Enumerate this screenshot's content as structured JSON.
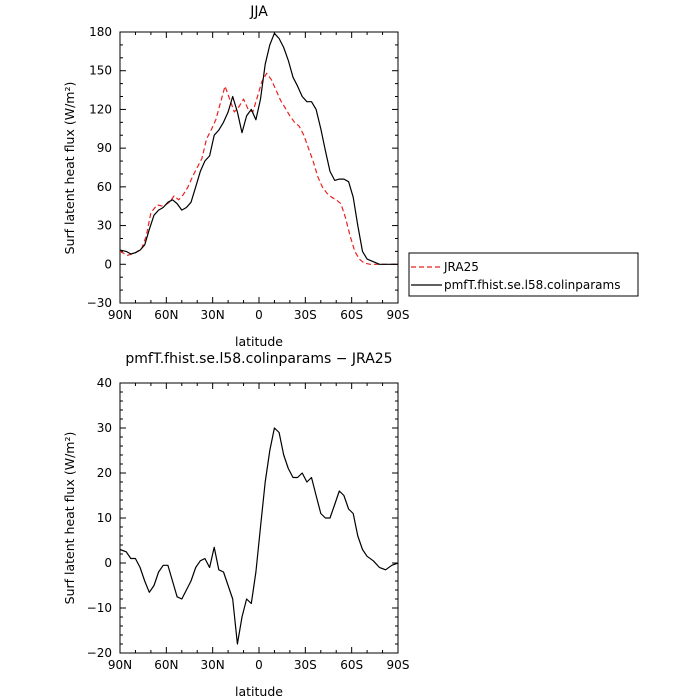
{
  "colors": {
    "jra": "#e8221f",
    "model": "#000000"
  },
  "chart_data": [
    {
      "type": "line",
      "title": "JJA",
      "xlabel": "latitude",
      "ylabel": "Surf latent heat flux (W/m²)",
      "xlim": [
        -90,
        90
      ],
      "ylim": [
        -30,
        180
      ],
      "xticks": [
        -90,
        -60,
        -30,
        0,
        30,
        60,
        90
      ],
      "xticklabels": [
        "90N",
        "60N",
        "30N",
        "0",
        "30S",
        "60S",
        "90S"
      ],
      "yticks": [
        -30,
        0,
        30,
        60,
        90,
        120,
        150,
        180
      ],
      "yticklabels": [
        "−30",
        "0",
        "30",
        "60",
        "90",
        "120",
        "150",
        "180"
      ],
      "legend_position": "right",
      "series": [
        {
          "name": "JRA25",
          "style": "dashed",
          "color": "#e8221f",
          "x": [
            -90,
            -85,
            -80,
            -76,
            -73,
            -70,
            -66,
            -62,
            -58,
            -55,
            -52,
            -49,
            -46,
            -43,
            -40,
            -37,
            -34,
            -31,
            -28,
            -25,
            -22,
            -19,
            -16,
            -13,
            -10,
            -7,
            -4,
            -1,
            2,
            5,
            8,
            11,
            14,
            17,
            20,
            23,
            26,
            29,
            32,
            35,
            38,
            41,
            44,
            47,
            50,
            53,
            56,
            59,
            62,
            65,
            68,
            72,
            76,
            80,
            84,
            87,
            90
          ],
          "y": [
            10,
            7,
            9,
            12,
            22,
            40,
            46,
            45,
            48,
            53,
            50,
            54,
            60,
            68,
            75,
            82,
            97,
            104,
            112,
            125,
            138,
            128,
            118,
            122,
            128,
            120,
            118,
            130,
            142,
            148,
            143,
            135,
            127,
            121,
            115,
            110,
            107,
            100,
            90,
            80,
            68,
            60,
            55,
            52,
            50,
            47,
            36,
            22,
            10,
            4,
            1,
            0,
            0,
            0,
            0,
            0,
            0
          ]
        },
        {
          "name": "pmfT.fhist.se.l58.colinparams",
          "style": "solid",
          "color": "#000000",
          "x": [
            -90,
            -86,
            -83,
            -80,
            -77,
            -74,
            -71,
            -68,
            -65,
            -62,
            -59,
            -56,
            -53,
            -50,
            -47,
            -44,
            -41,
            -38,
            -35,
            -32,
            -29,
            -26,
            -23,
            -20,
            -17,
            -14,
            -11,
            -8,
            -5,
            -2,
            1,
            4,
            7,
            10,
            13,
            16,
            19,
            22,
            25,
            28,
            31,
            34,
            37,
            40,
            43,
            46,
            49,
            52,
            55,
            58,
            61,
            64,
            67,
            70,
            74,
            78,
            82,
            86,
            90
          ],
          "y": [
            11,
            10,
            8,
            9,
            11,
            15,
            27,
            38,
            42,
            44,
            48,
            50,
            47,
            42,
            44,
            48,
            60,
            72,
            80,
            84,
            100,
            104,
            110,
            118,
            130,
            118,
            102,
            115,
            120,
            112,
            128,
            155,
            170,
            179,
            175,
            168,
            158,
            145,
            138,
            130,
            126,
            126,
            120,
            105,
            88,
            72,
            65,
            66,
            66,
            64,
            52,
            30,
            10,
            4,
            2,
            0,
            0,
            0,
            0
          ]
        }
      ]
    },
    {
      "type": "line",
      "title": "pmfT.fhist.se.l58.colinparams − JRA25",
      "xlabel": "latitude",
      "ylabel": "Surf latent heat flux (W/m²)",
      "xlim": [
        -90,
        90
      ],
      "ylim": [
        -20,
        40
      ],
      "xticks": [
        -90,
        -60,
        -30,
        0,
        30,
        60,
        90
      ],
      "xticklabels": [
        "90N",
        "60N",
        "30N",
        "0",
        "30S",
        "60S",
        "90S"
      ],
      "yticks": [
        -20,
        -10,
        0,
        10,
        20,
        30,
        40
      ],
      "yticklabels": [
        "−20",
        "−10",
        "0",
        "10",
        "20",
        "30",
        "40"
      ],
      "series": [
        {
          "style": "solid",
          "color": "#000000",
          "x": [
            -90,
            -86,
            -83,
            -80,
            -77,
            -74,
            -71,
            -68,
            -65,
            -62,
            -59,
            -56,
            -53,
            -50,
            -47,
            -44,
            -41,
            -38,
            -35,
            -32,
            -29,
            -26,
            -23,
            -20,
            -17,
            -14,
            -11,
            -8,
            -5,
            -2,
            1,
            4,
            7,
            10,
            13,
            16,
            19,
            22,
            25,
            28,
            31,
            34,
            37,
            40,
            43,
            46,
            49,
            52,
            55,
            58,
            61,
            64,
            67,
            70,
            74,
            78,
            82,
            86,
            90
          ],
          "y": [
            3,
            2.5,
            1,
            1,
            -1,
            -4,
            -6.5,
            -5,
            -2,
            -0.5,
            -0.5,
            -4,
            -7.5,
            -8,
            -6,
            -4,
            -1,
            0.5,
            1,
            -1,
            3.5,
            -1.5,
            -2,
            -5,
            -8,
            -18,
            -12,
            -8,
            -9,
            -2,
            8,
            18,
            25,
            30,
            29,
            24,
            21,
            19,
            19,
            20,
            18,
            19,
            15,
            11,
            10,
            10,
            13,
            16,
            15,
            12,
            11,
            6,
            3,
            1.5,
            0.5,
            -1,
            -1.5,
            -0.5,
            0
          ]
        }
      ]
    }
  ],
  "legend": {
    "entries": [
      {
        "label": "JRA25",
        "series_ref": "0.0"
      },
      {
        "label": "pmfT.fhist.se.l58.colinparams",
        "series_ref": "0.1"
      }
    ]
  }
}
